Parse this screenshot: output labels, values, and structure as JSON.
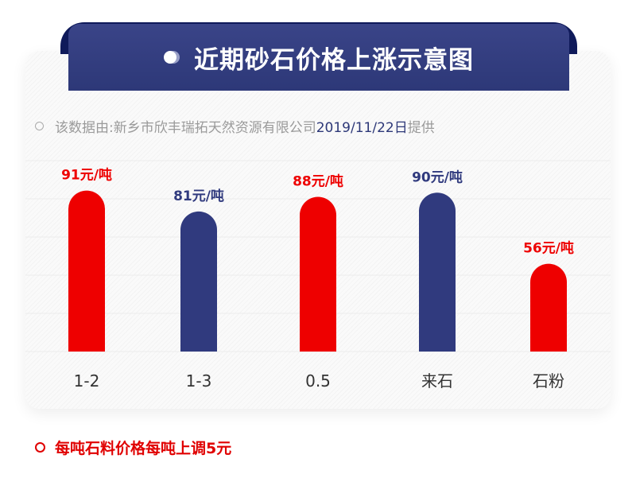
{
  "header": {
    "title": "近期砂石价格上涨示意图"
  },
  "source": {
    "prefix": "该数据由:新乡市欣丰瑞拓天然资源有限公司",
    "date": "2019/11/22日",
    "suffix": "提供"
  },
  "note": "每吨石料价格每吨上调5元",
  "colors": {
    "red": "#ee0000",
    "navy": "#303a7e"
  },
  "chart_data": {
    "type": "bar",
    "categories": [
      "1-2",
      "1-3",
      "0.5",
      "来石",
      "石粉"
    ],
    "values": [
      91,
      81,
      88,
      90,
      56
    ],
    "data_labels": [
      "91元/吨",
      "81元/吨",
      "88元/吨",
      "90元/吨",
      "56元/吨"
    ],
    "bar_colors": [
      "#ee0000",
      "#303a7e",
      "#ee0000",
      "#303a7e",
      "#ee0000"
    ],
    "title": "",
    "xlabel": "",
    "ylabel": "",
    "ylim": [
      14,
      100
    ],
    "grid": true
  }
}
